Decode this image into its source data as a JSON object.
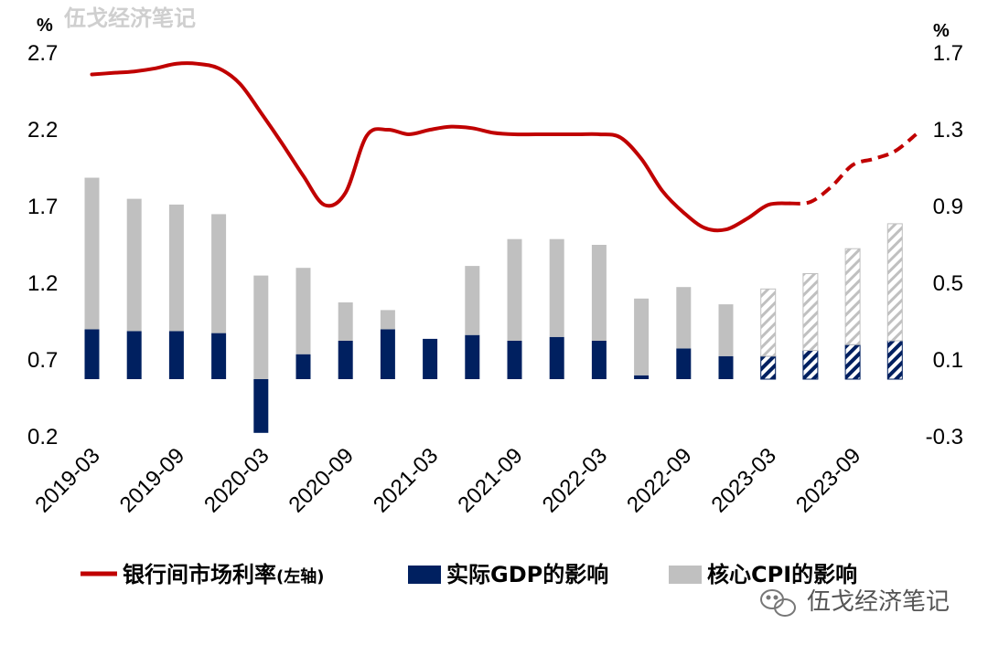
{
  "watermark": "伍戈经济笔记",
  "brand_label": "伍戈经济笔记",
  "colors": {
    "line": "#c00000",
    "gdp": "#002060",
    "cpi": "#c0c0c0",
    "hatch_bg": "#ffffff"
  },
  "chart_data": {
    "type": "bar+line",
    "left_axis": {
      "unit": "%",
      "ticks": [
        "2.7",
        "2.2",
        "1.7",
        "1.2",
        "0.7",
        "0.2"
      ],
      "range": [
        0.2,
        2.7
      ]
    },
    "right_axis": {
      "unit": "%",
      "ticks": [
        "1.7",
        "1.3",
        "0.9",
        "0.5",
        "0.1",
        "-0.3"
      ],
      "range": [
        -0.3,
        1.7
      ]
    },
    "x_tick_labels": [
      "2019-03",
      "2019-09",
      "2020-03",
      "2020-09",
      "2021-03",
      "2021-09",
      "2022-03",
      "2022-09",
      "2023-03",
      "2023-09"
    ],
    "quarters": [
      "2019-03",
      "2019-06",
      "2019-09",
      "2019-12",
      "2020-03",
      "2020-06",
      "2020-09",
      "2020-12",
      "2021-03",
      "2021-06",
      "2021-09",
      "2021-12",
      "2022-03",
      "2022-06",
      "2022-09",
      "2022-12",
      "2023-03",
      "2023-06",
      "2023-09",
      "2023-12"
    ],
    "series": [
      {
        "name": "实际GDP的影响",
        "axis": "right",
        "values": [
          0.26,
          0.25,
          0.25,
          0.24,
          -0.28,
          0.13,
          0.2,
          0.26,
          0.21,
          0.23,
          0.2,
          0.22,
          0.2,
          0.02,
          0.16,
          0.12,
          0.12,
          0.15,
          0.18,
          0.2
        ],
        "forecast_from_index": 16
      },
      {
        "name": "核心CPI的影响",
        "axis": "right",
        "values": [
          0.79,
          0.69,
          0.66,
          0.62,
          0.54,
          0.45,
          0.2,
          0.1,
          0.0,
          0.36,
          0.53,
          0.51,
          0.5,
          0.4,
          0.32,
          0.27,
          0.35,
          0.4,
          0.5,
          0.61
        ],
        "stacking": "top of bar = GDP + CPI; bar at 2021-03 has no CPI component",
        "forecast_from_index": 16
      },
      {
        "name": "银行间市场利率",
        "name_note": "(左轴)",
        "axis": "left",
        "x": [
          0,
          0.5,
          1,
          1.5,
          2,
          2.5,
          3,
          3.5,
          4,
          4.5,
          5,
          5.5,
          6,
          6.5,
          7,
          7.5,
          8,
          8.5,
          9,
          9.5,
          10,
          10.5,
          11,
          11.5,
          12,
          12.5,
          13,
          13.5,
          14,
          14.5,
          15,
          15.5,
          16,
          16.5,
          17,
          17.5,
          18,
          18.5,
          19,
          19.5
        ],
        "values": [
          2.56,
          2.57,
          2.58,
          2.6,
          2.63,
          2.63,
          2.6,
          2.5,
          2.31,
          2.11,
          1.9,
          1.71,
          1.79,
          2.16,
          2.2,
          2.17,
          2.2,
          2.22,
          2.21,
          2.18,
          2.17,
          2.17,
          2.17,
          2.17,
          2.17,
          2.15,
          2.01,
          1.8,
          1.66,
          1.56,
          1.55,
          1.62,
          1.71,
          1.72,
          1.73,
          1.83,
          1.97,
          2.01,
          2.06,
          2.17
        ],
        "forecast_from_x": 16.5
      }
    ],
    "legend_placement": "bottom"
  },
  "legend": {
    "line_label": "银行间市场利率",
    "line_note": "(左轴)",
    "gdp_label": "实际GDP的影响",
    "cpi_label": "核心CPI的影响"
  }
}
